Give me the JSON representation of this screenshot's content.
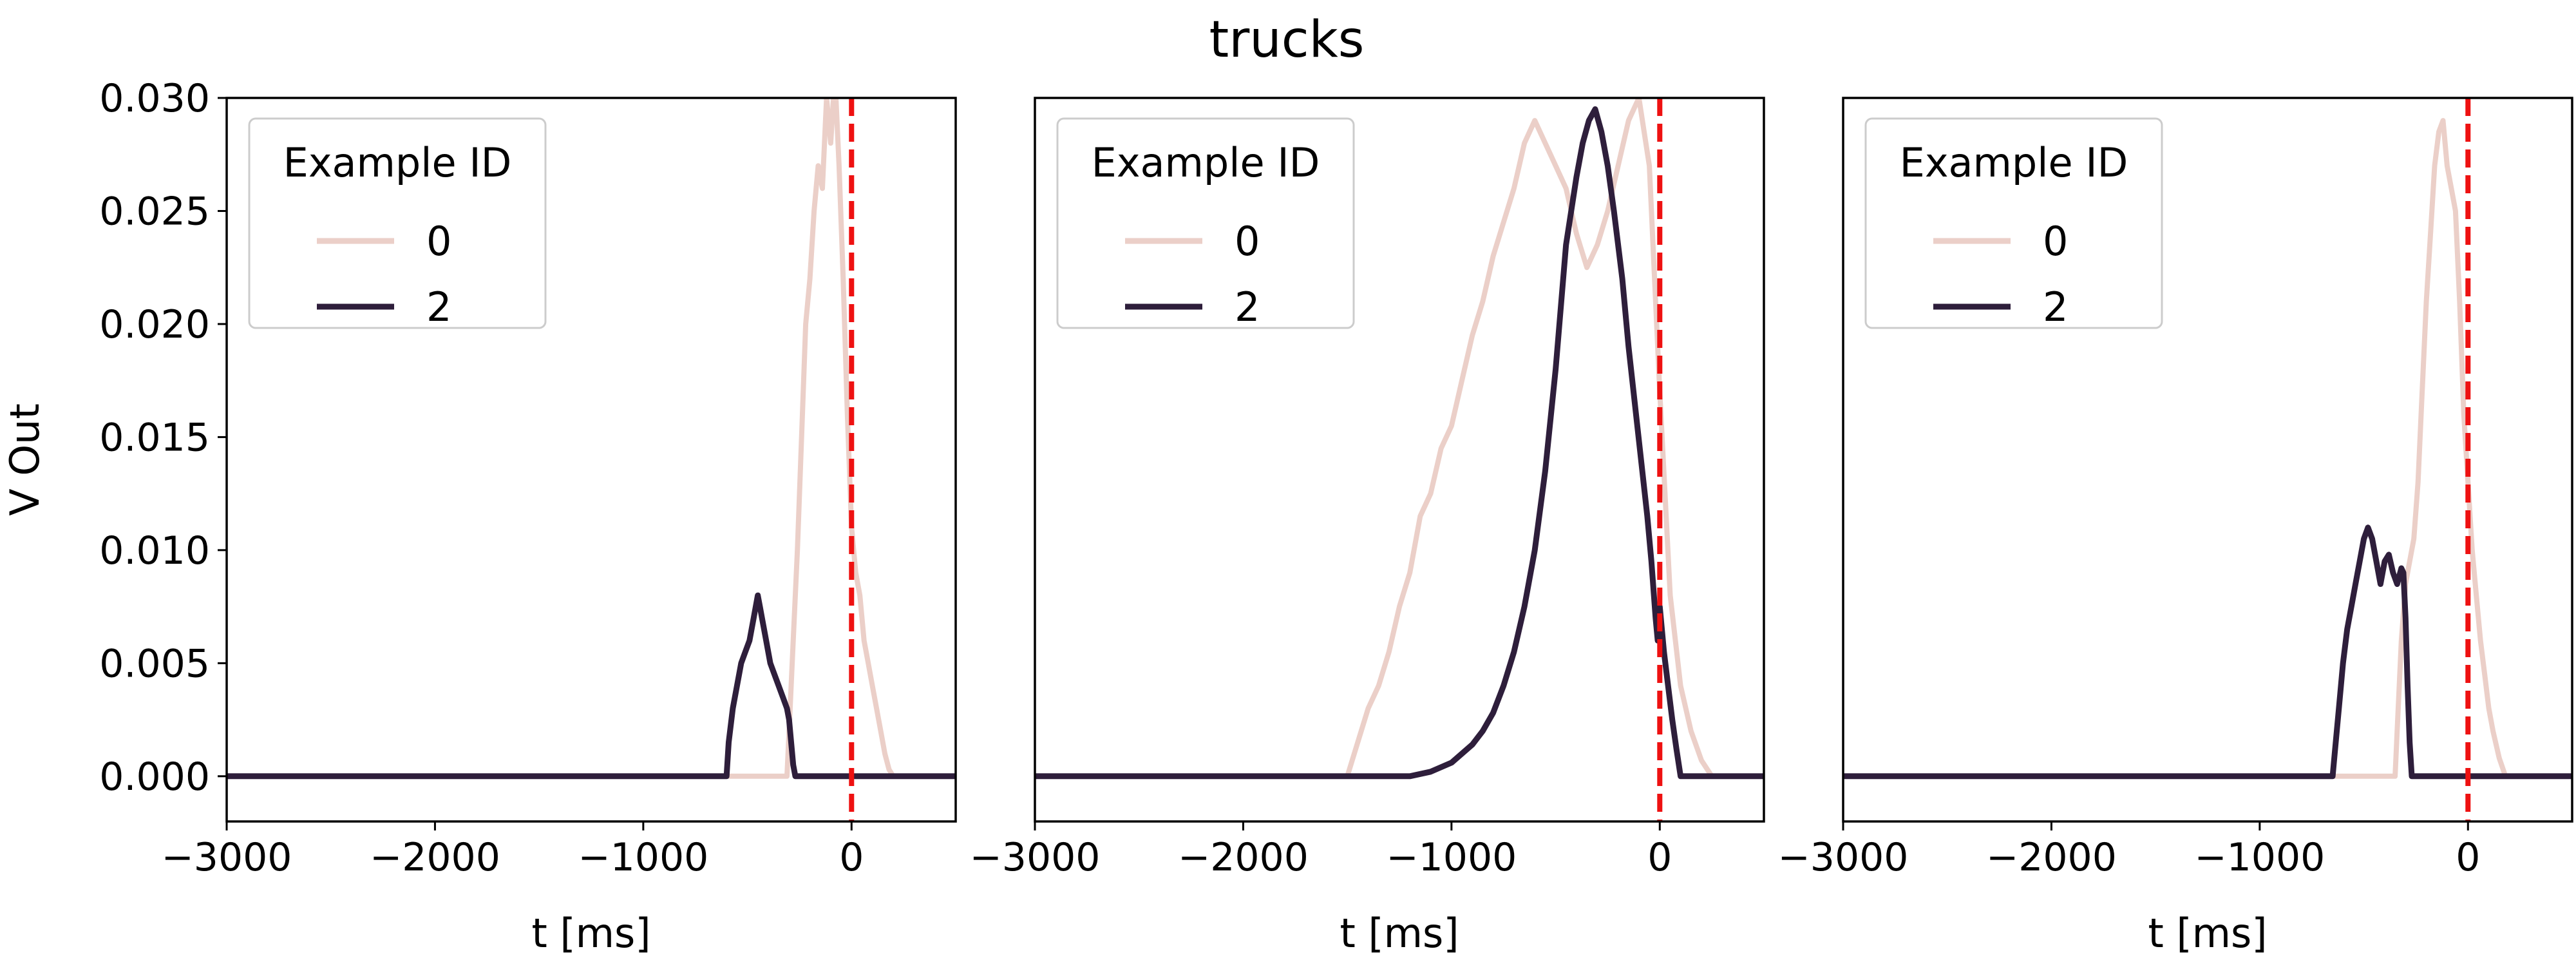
{
  "title": "trucks",
  "colors": {
    "series_0": "#ebcfc8",
    "series_2": "#2e1e3b",
    "marker": "#ee1111",
    "legend_border": "#cccccc"
  },
  "chart_data": [
    {
      "type": "line",
      "title": "",
      "xlabel": "t [ms]",
      "ylabel": "V Out",
      "xlim": [
        -3000,
        500
      ],
      "ylim": [
        -0.002,
        0.03
      ],
      "xticks": [
        -3000,
        -2000,
        -1000,
        0
      ],
      "xtick_labels": [
        "−3000",
        "−2000",
        "−1000",
        "0"
      ],
      "yticks": [
        0.0,
        0.005,
        0.01,
        0.015,
        0.02,
        0.025,
        0.03
      ],
      "ytick_labels": [
        "0.000",
        "0.005",
        "0.010",
        "0.015",
        "0.020",
        "0.025",
        "0.030"
      ],
      "vline_x": 0,
      "legend": {
        "title": "Example ID",
        "placement": "upper left"
      },
      "series": [
        {
          "name": "0",
          "x": [
            -3000,
            -310,
            -300,
            -280,
            -260,
            -240,
            -220,
            -200,
            -180,
            -160,
            -140,
            -120,
            -100,
            -80,
            -60,
            -40,
            -20,
            0,
            20,
            40,
            60,
            80,
            100,
            120,
            140,
            160,
            180,
            200,
            500
          ],
          "y": [
            0.0,
            0.0,
            0.002,
            0.006,
            0.01,
            0.015,
            0.02,
            0.022,
            0.025,
            0.027,
            0.026,
            0.03,
            0.028,
            0.031,
            0.027,
            0.022,
            0.016,
            0.011,
            0.009,
            0.008,
            0.006,
            0.005,
            0.004,
            0.003,
            0.002,
            0.001,
            0.0003,
            0.0,
            0.0
          ]
        },
        {
          "name": "2",
          "x": [
            -3000,
            -600,
            -590,
            -570,
            -550,
            -530,
            -510,
            -490,
            -470,
            -450,
            -440,
            -430,
            -410,
            -390,
            -370,
            -350,
            -330,
            -310,
            -300,
            -290,
            -280,
            -270,
            500
          ],
          "y": [
            0.0,
            0.0,
            0.0015,
            0.003,
            0.004,
            0.005,
            0.0055,
            0.006,
            0.007,
            0.008,
            0.0075,
            0.007,
            0.006,
            0.005,
            0.0045,
            0.004,
            0.0035,
            0.003,
            0.0025,
            0.0015,
            0.0005,
            0.0,
            0.0
          ]
        }
      ]
    },
    {
      "type": "line",
      "title": "",
      "xlabel": "t [ms]",
      "ylabel": "",
      "xlim": [
        -3000,
        500
      ],
      "ylim": [
        -0.002,
        0.03
      ],
      "xticks": [
        -3000,
        -2000,
        -1000,
        0
      ],
      "xtick_labels": [
        "−3000",
        "−2000",
        "−1000",
        "0"
      ],
      "vline_x": 0,
      "legend": {
        "title": "Example ID",
        "placement": "upper left"
      },
      "series": [
        {
          "name": "0",
          "x": [
            -3000,
            -1500,
            -1450,
            -1400,
            -1350,
            -1300,
            -1250,
            -1200,
            -1150,
            -1100,
            -1050,
            -1000,
            -950,
            -900,
            -850,
            -800,
            -750,
            -700,
            -650,
            -600,
            -550,
            -500,
            -450,
            -400,
            -350,
            -300,
            -250,
            -200,
            -150,
            -100,
            -50,
            0,
            50,
            100,
            150,
            200,
            250,
            500
          ],
          "y": [
            0.0,
            0.0,
            0.0015,
            0.003,
            0.004,
            0.0055,
            0.0075,
            0.009,
            0.0115,
            0.0125,
            0.0145,
            0.0155,
            0.0175,
            0.0195,
            0.021,
            0.023,
            0.0245,
            0.026,
            0.028,
            0.029,
            0.028,
            0.027,
            0.026,
            0.024,
            0.0225,
            0.0235,
            0.025,
            0.027,
            0.029,
            0.03,
            0.027,
            0.017,
            0.008,
            0.004,
            0.002,
            0.0007,
            0.0,
            0.0
          ]
        },
        {
          "name": "2",
          "x": [
            -3000,
            -1200,
            -1100,
            -1000,
            -900,
            -850,
            -800,
            -750,
            -700,
            -650,
            -600,
            -550,
            -500,
            -450,
            -400,
            -370,
            -340,
            -310,
            -280,
            -250,
            -220,
            -200,
            -180,
            -150,
            -120,
            -90,
            -60,
            -40,
            -20,
            -10,
            0,
            20,
            40,
            60,
            80,
            100,
            500
          ],
          "y": [
            0.0,
            0.0,
            0.0002,
            0.0006,
            0.0014,
            0.002,
            0.0028,
            0.004,
            0.0055,
            0.0075,
            0.01,
            0.0135,
            0.018,
            0.0235,
            0.0265,
            0.028,
            0.029,
            0.0295,
            0.0285,
            0.027,
            0.025,
            0.0235,
            0.022,
            0.019,
            0.0165,
            0.014,
            0.0115,
            0.0095,
            0.007,
            0.006,
            0.0075,
            0.0055,
            0.004,
            0.0025,
            0.0012,
            0.0,
            0.0
          ]
        }
      ]
    },
    {
      "type": "line",
      "title": "",
      "xlabel": "t [ms]",
      "ylabel": "",
      "xlim": [
        -3000,
        500
      ],
      "ylim": [
        -0.002,
        0.03
      ],
      "xticks": [
        -3000,
        -2000,
        -1000,
        0
      ],
      "xtick_labels": [
        "−3000",
        "−2000",
        "−1000",
        "0"
      ],
      "vline_x": 0,
      "legend": {
        "title": "Example ID",
        "placement": "upper left"
      },
      "series": [
        {
          "name": "0",
          "x": [
            -3000,
            -350,
            -340,
            -320,
            -300,
            -280,
            -260,
            -240,
            -220,
            -200,
            -180,
            -160,
            -140,
            -120,
            -100,
            -80,
            -60,
            -40,
            -20,
            0,
            20,
            40,
            60,
            80,
            100,
            120,
            150,
            180,
            500
          ],
          "y": [
            0.0,
            0.0,
            0.002,
            0.006,
            0.0085,
            0.0095,
            0.0105,
            0.013,
            0.017,
            0.021,
            0.024,
            0.027,
            0.0285,
            0.029,
            0.027,
            0.026,
            0.025,
            0.021,
            0.016,
            0.013,
            0.01,
            0.008,
            0.006,
            0.0045,
            0.003,
            0.002,
            0.0008,
            0.0,
            0.0
          ]
        },
        {
          "name": "2",
          "x": [
            -3000,
            -650,
            -640,
            -620,
            -600,
            -580,
            -560,
            -540,
            -520,
            -500,
            -480,
            -460,
            -440,
            -420,
            -400,
            -380,
            -360,
            -340,
            -320,
            -310,
            -300,
            -290,
            -280,
            -270,
            500
          ],
          "y": [
            0.0,
            0.0,
            0.001,
            0.003,
            0.005,
            0.0065,
            0.0075,
            0.0085,
            0.0095,
            0.0105,
            0.011,
            0.0105,
            0.0095,
            0.0085,
            0.0095,
            0.0098,
            0.009,
            0.0085,
            0.0092,
            0.009,
            0.007,
            0.004,
            0.0015,
            0.0,
            0.0
          ]
        }
      ]
    }
  ]
}
